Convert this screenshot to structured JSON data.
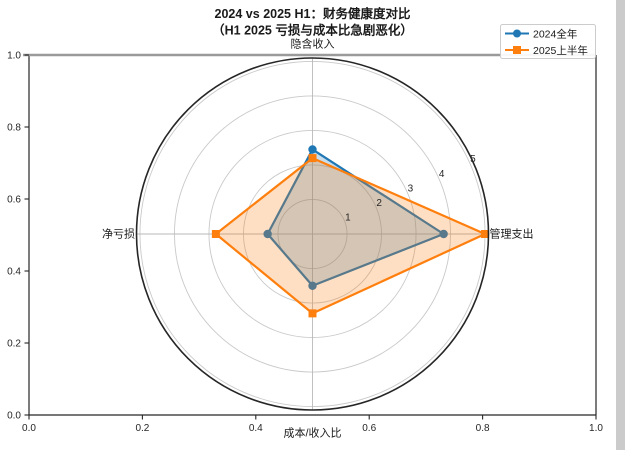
{
  "figure": {
    "title_line1": "2024 vs 2025 H1：财务健康度对比",
    "title_line2": "（H1 2025 亏损与成本比急剧恶化）"
  },
  "legend": {
    "items": [
      {
        "label": "2024全年",
        "color": "#1f77b4",
        "marker": "circle"
      },
      {
        "label": "2025上半年",
        "color": "#ff7f0e",
        "marker": "square"
      }
    ]
  },
  "chart_data": {
    "type": "radar",
    "title": "2024 vs 2025 H1：财务健康度对比",
    "subtitle": "（H1 2025 亏损与成本比急剧恶化）",
    "categories": [
      "隐含收入",
      "管理支出",
      "成本/收入比",
      "净亏损"
    ],
    "series": [
      {
        "name": "2024全年",
        "color": "#1f77b4",
        "marker": "circle",
        "values": [
          2.45,
          3.8,
          1.5,
          1.3
        ]
      },
      {
        "name": "2025上半年",
        "color": "#ff7f0e",
        "marker": "square",
        "values": [
          2.2,
          5.0,
          2.3,
          2.8
        ]
      }
    ],
    "fill_opacity": 0.25,
    "radial_ticks": [
      "1",
      "2",
      "3",
      "4",
      "5"
    ],
    "r_max": 5.1,
    "r_label_angle_deg": 22.5,
    "grid": true,
    "legend_position": "upper right",
    "outer_axes": {
      "x_ticks": [
        "0.0",
        "0.2",
        "0.4",
        "0.6",
        "0.8",
        "1.0"
      ],
      "y_ticks": [
        "0.0",
        "0.2",
        "0.4",
        "0.6",
        "0.8",
        "1.0"
      ]
    },
    "colors": {
      "series_2024": "#1f77b4",
      "series_2025": "#ff7f0e",
      "grid_line": "#c9c9c9",
      "spoke_line": "#b9b9b9",
      "outer_circle": "#262626",
      "top_spine": "#9a9a9a"
    }
  }
}
